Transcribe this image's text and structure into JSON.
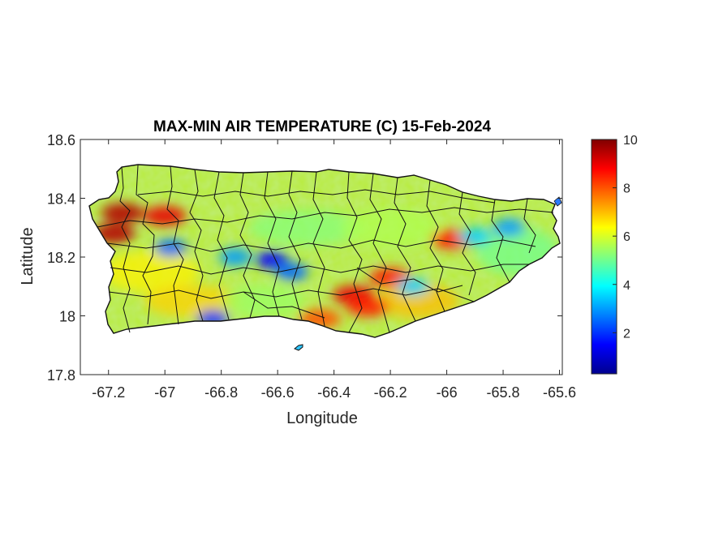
{
  "chart_data": {
    "type": "heatmap",
    "title": "MAX-MIN AIR TEMPERATURE (C) 15-Feb-2024",
    "xlabel": "Longitude",
    "ylabel": "Latitude",
    "xlim": [
      -67.3,
      -65.59
    ],
    "ylim": [
      17.8,
      18.6
    ],
    "xticks": [
      -67.2,
      -67,
      -66.8,
      -66.6,
      -66.4,
      -66.2,
      -66,
      -65.8,
      -65.6
    ],
    "xtick_labels": [
      "-67.2",
      "-67",
      "-66.8",
      "-66.6",
      "-66.4",
      "-66.2",
      "-66",
      "-65.8",
      "-65.6"
    ],
    "yticks": [
      17.8,
      18,
      18.2,
      18.4,
      18.6
    ],
    "ytick_labels": [
      "17.8",
      "18",
      "18.2",
      "18.4",
      "18.6"
    ],
    "colorbar": {
      "colormap": "jet",
      "min": 0.3,
      "max": 10,
      "ticks": [
        2,
        4,
        6,
        8,
        10
      ],
      "tick_labels": [
        "2",
        "4",
        "6",
        "8",
        "10"
      ]
    },
    "hotspots": [
      {
        "lon": -67.15,
        "lat": 18.35,
        "value": 9.5
      },
      {
        "lon": -67.0,
        "lat": 18.34,
        "value": 9.0
      },
      {
        "lon": -67.18,
        "lat": 18.28,
        "value": 9.5
      },
      {
        "lon": -66.33,
        "lat": 18.07,
        "value": 9.0
      },
      {
        "lon": -66.28,
        "lat": 18.03,
        "value": 8.5
      },
      {
        "lon": -66.2,
        "lat": 18.13,
        "value": 8.5
      },
      {
        "lon": -65.98,
        "lat": 18.26,
        "value": 8.5
      },
      {
        "lon": -66.45,
        "lat": 17.99,
        "value": 8.0
      }
    ],
    "coldspots": [
      {
        "lon": -66.98,
        "lat": 18.23,
        "value": 2.5
      },
      {
        "lon": -66.75,
        "lat": 18.2,
        "value": 3.0
      },
      {
        "lon": -66.62,
        "lat": 18.19,
        "value": 1.5
      },
      {
        "lon": -66.55,
        "lat": 18.15,
        "value": 2.5
      },
      {
        "lon": -66.83,
        "lat": 17.99,
        "value": 2.0
      },
      {
        "lon": -66.12,
        "lat": 18.1,
        "value": 3.5
      },
      {
        "lon": -65.78,
        "lat": 18.3,
        "value": 3.0
      },
      {
        "lon": -65.9,
        "lat": 18.27,
        "value": 3.5
      }
    ]
  }
}
